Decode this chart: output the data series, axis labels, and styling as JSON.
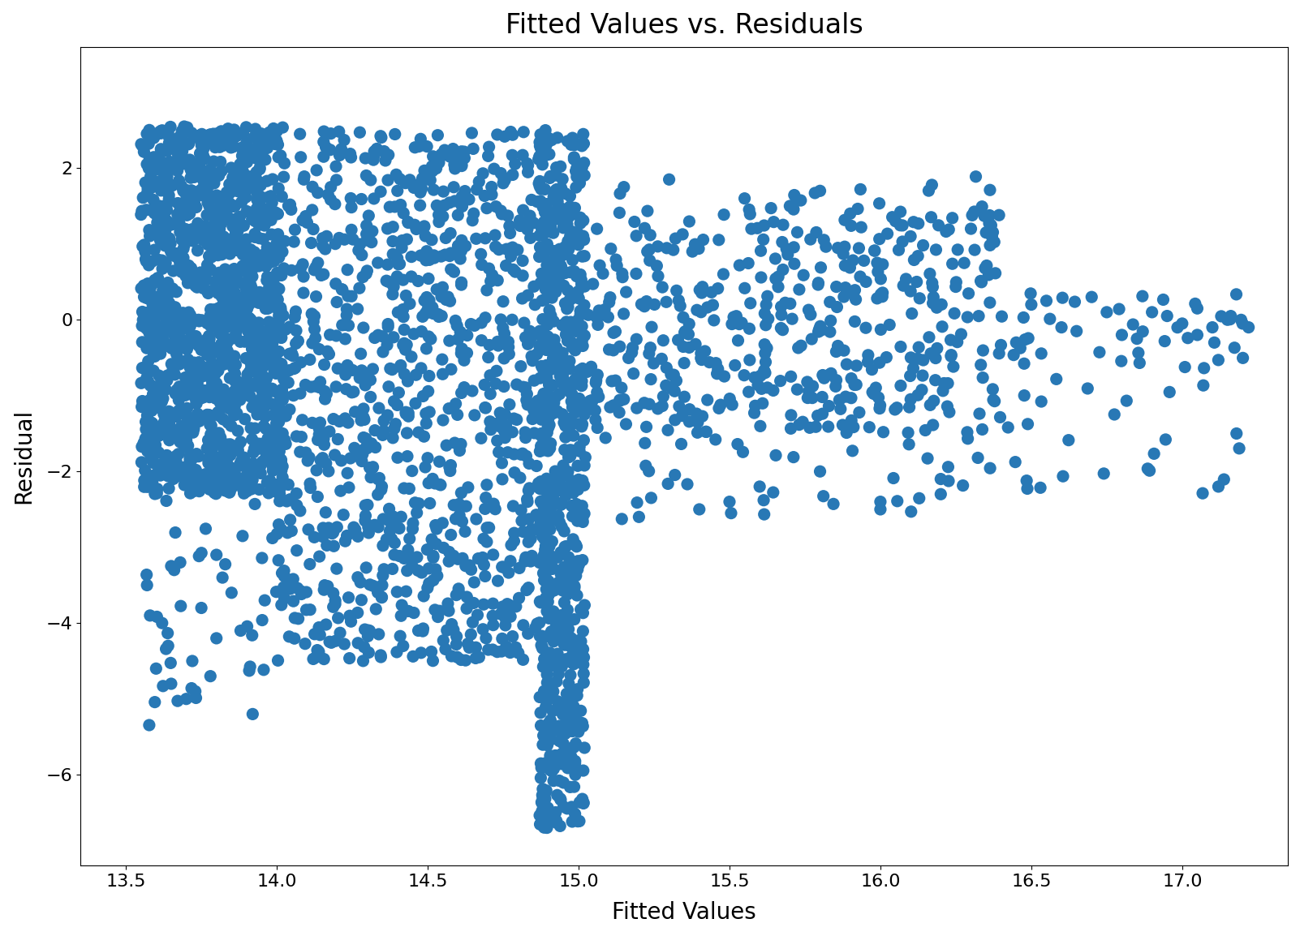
{
  "title": "Fitted Values vs. Residuals",
  "xlabel": "Fitted Values",
  "ylabel": "Residual",
  "dot_color": "#2878b5",
  "dot_size": 120,
  "dot_alpha": 1.0,
  "xlim": [
    13.35,
    17.35
  ],
  "ylim": [
    -7.2,
    3.6
  ],
  "figsize": [
    16.02,
    11.54
  ],
  "dpi": 100,
  "title_fontsize": 24,
  "label_fontsize": 20,
  "tick_fontsize": 16
}
